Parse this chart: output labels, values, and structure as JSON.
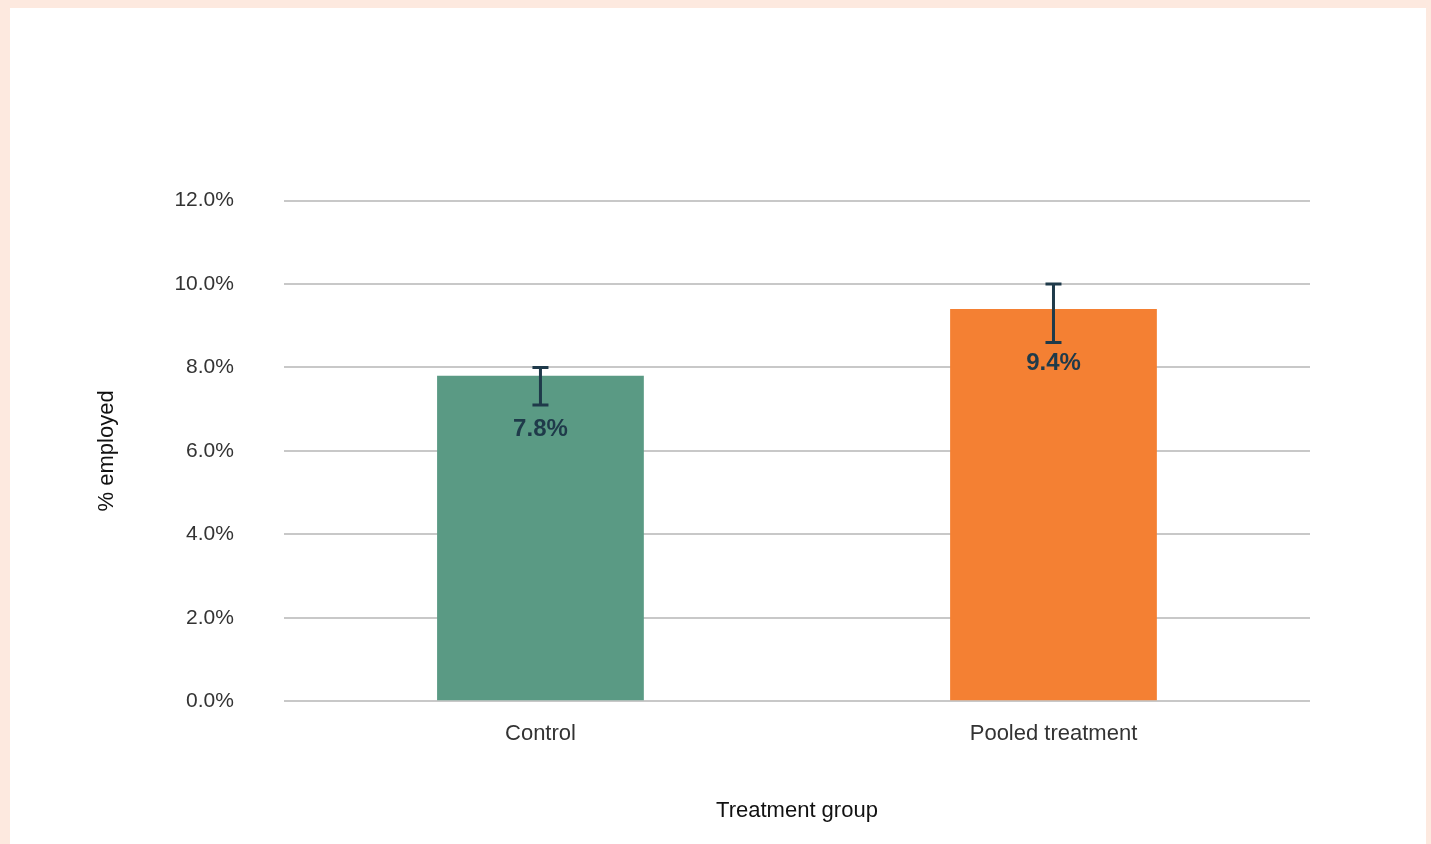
{
  "chart_data": {
    "type": "bar",
    "xlabel": "Treatment group",
    "ylabel": "% employed",
    "categories": [
      "Control",
      "Pooled treatment"
    ],
    "values": [
      7.8,
      9.4
    ],
    "colors": [
      "#5a9a84",
      "#f48033"
    ],
    "errors": [
      [
        7.1,
        8.0
      ],
      [
        8.6,
        10.0
      ]
    ],
    "value_labels": [
      "7.8%",
      "9.4%"
    ],
    "ylim": [
      0,
      12
    ],
    "yticks": [
      {
        "value": 0,
        "label": "0.0%"
      },
      {
        "value": 2,
        "label": "2.0%"
      },
      {
        "value": 4,
        "label": "4.0%"
      },
      {
        "value": 6,
        "label": "6.0%"
      },
      {
        "value": 8,
        "label": "8.0%"
      },
      {
        "value": 10,
        "label": "10.0%"
      },
      {
        "value": 12,
        "label": "12.0%"
      }
    ],
    "grid": "y",
    "legend": false
  }
}
